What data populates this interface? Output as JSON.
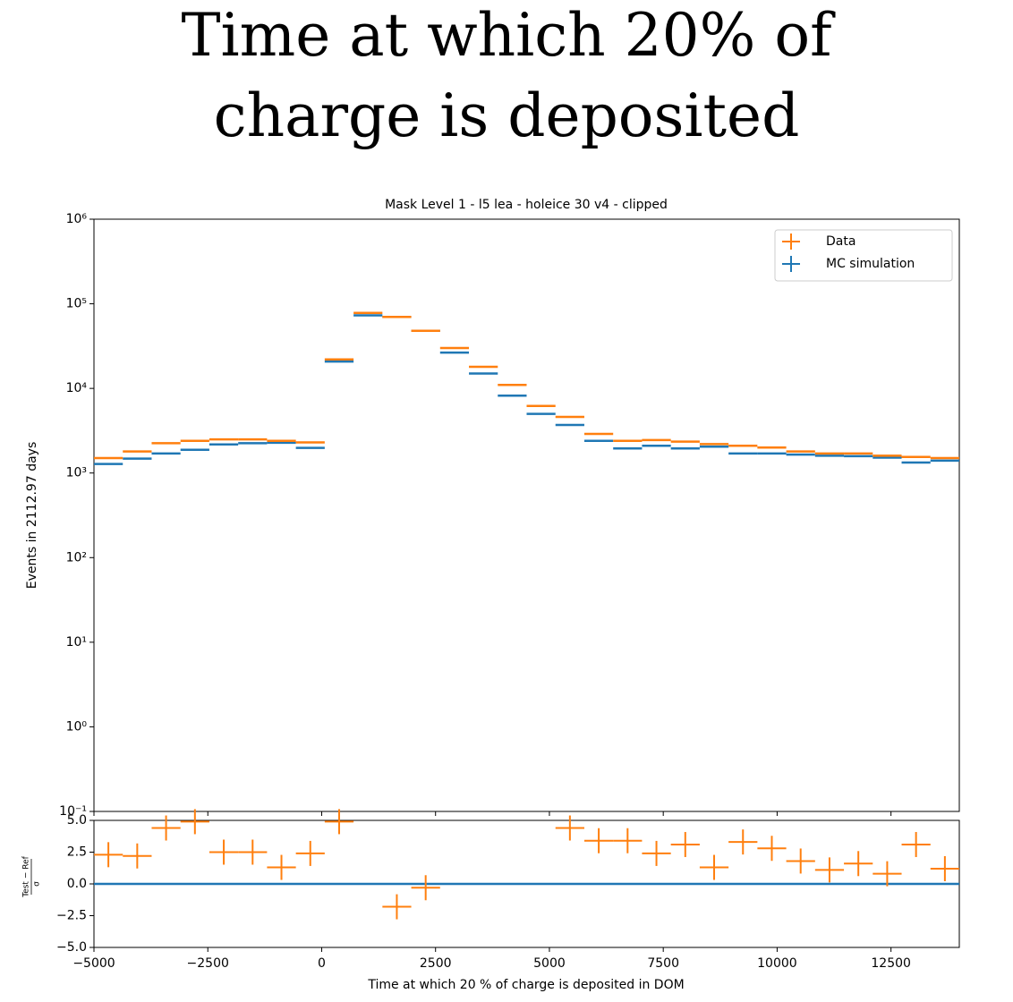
{
  "suptitle": "Time at which 20% of charge is deposited",
  "chart_data": [
    {
      "type": "histogram",
      "title": "Mask Level 1 - l5 lea - holeice 30 v4 - clipped",
      "ylabel": "Events in 2112.97 days",
      "log_y": true,
      "legend": "upper right",
      "bins": [
        -5000,
        -4366.67,
        -3733.33,
        -3100,
        -2466.67,
        -1833.33,
        -1200,
        -566.67,
        66.67,
        700,
        1333.33,
        1966.67,
        2600,
        3233.33,
        3866.67,
        4500,
        5133.33,
        5766.67,
        6400,
        7033.33,
        7666.67,
        8300,
        8933.33,
        9566.67,
        10200,
        10833.33,
        11466.67,
        12100,
        12733.33,
        13366.67,
        14000
      ],
      "series": [
        {
          "name": "Data",
          "color": "#ff7f0e",
          "values": [
            1500,
            1800,
            2250,
            2400,
            2500,
            2500,
            2400,
            2300,
            22000,
            78000,
            70000,
            48000,
            30000,
            18000,
            11000,
            6200,
            4600,
            2900,
            2400,
            2450,
            2350,
            2200,
            2100,
            2000,
            1800,
            1700,
            1700,
            1600,
            1550,
            1500
          ]
        },
        {
          "name": "MC simulation",
          "color": "#1f77b4",
          "values": [
            1280,
            1480,
            1700,
            1880,
            2180,
            2250,
            2280,
            1980,
            20800,
            73000,
            70000,
            48000,
            26500,
            15000,
            8200,
            5000,
            3700,
            2400,
            1950,
            2100,
            1950,
            2050,
            1700,
            1700,
            1650,
            1600,
            1580,
            1520,
            1330,
            1400
          ]
        }
      ],
      "xlim": [
        -5000,
        14000
      ],
      "ylim": [
        0.1,
        1000000
      ],
      "yticks": [
        {
          "value": 0.1,
          "label": "10⁻¹"
        },
        {
          "value": 1,
          "label": "10⁰"
        },
        {
          "value": 10,
          "label": "10¹"
        },
        {
          "value": 100,
          "label": "10²"
        },
        {
          "value": 1000,
          "label": "10³"
        },
        {
          "value": 10000,
          "label": "10⁴"
        },
        {
          "value": 100000,
          "label": "10⁵"
        },
        {
          "value": 1000000,
          "label": "10⁶"
        }
      ]
    },
    {
      "type": "residual",
      "xlabel": "Time at which 20 % of charge is deposited in DOM",
      "ylabel": {
        "numerator": "Test − Ref",
        "denominator": "σ"
      },
      "color": "#ff7f0e",
      "reference_color": "#1f77b4",
      "values": [
        2.3,
        2.2,
        4.4,
        4.9,
        2.5,
        2.5,
        1.3,
        2.4,
        4.9,
        null,
        -1.8,
        -0.3,
        null,
        null,
        null,
        null,
        4.4,
        3.4,
        3.4,
        2.4,
        3.1,
        1.3,
        3.3,
        2.8,
        1.8,
        1.1,
        1.6,
        0.8,
        3.1,
        1.2
      ],
      "xlim": [
        -5000,
        14000
      ],
      "ylim": [
        -5,
        5
      ],
      "xticks": [
        {
          "value": -5000,
          "label": "−5000"
        },
        {
          "value": -2500,
          "label": "−2500"
        },
        0,
        2500,
        5000,
        7500,
        10000,
        12500
      ],
      "yticks": [
        {
          "value": -5,
          "label": "−5.0"
        },
        {
          "value": -2.5,
          "label": "−2.5"
        },
        {
          "value": 0,
          "label": "0.0"
        },
        {
          "value": 2.5,
          "label": "2.5"
        },
        {
          "value": 5,
          "label": "5.0"
        }
      ]
    }
  ]
}
